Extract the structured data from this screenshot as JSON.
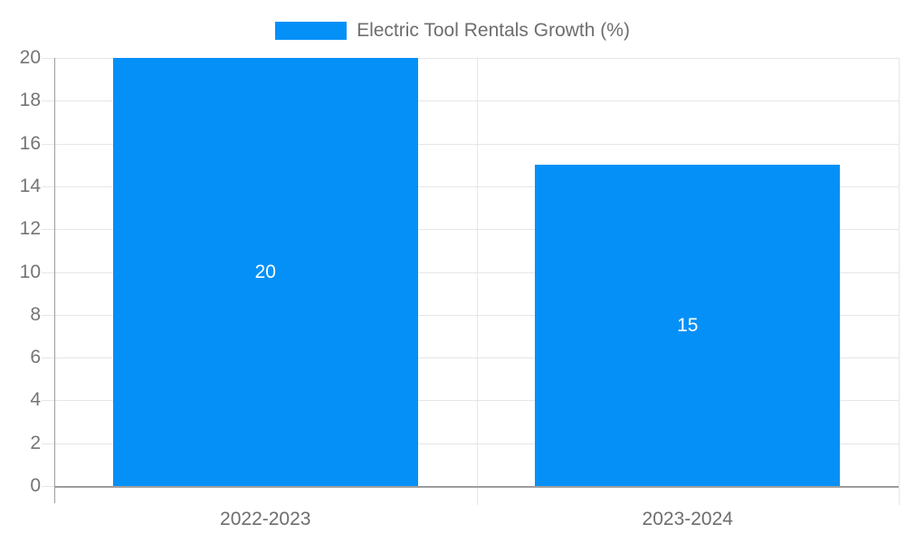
{
  "legend": {
    "label": "Electric Tool Rentals Growth (%)"
  },
  "chart_data": {
    "type": "bar",
    "title": "Electric Tool Rentals Growth (%)",
    "categories": [
      "2022-2023",
      "2023-2024"
    ],
    "series": [
      {
        "name": "Electric Tool Rentals Growth (%)",
        "values": [
          20,
          15
        ]
      }
    ],
    "value_labels": [
      "20",
      "15"
    ],
    "ytick_labels": [
      "0",
      "2",
      "4",
      "6",
      "8",
      "10",
      "12",
      "14",
      "16",
      "18",
      "20"
    ],
    "xlabel": "",
    "ylabel": "",
    "ylim": [
      0,
      20
    ],
    "ytick_step": 2,
    "grid": true,
    "legend_position": "top",
    "colors": {
      "bar": "#0590f8",
      "grid": "#e6e6e6",
      "axis": "#9e9e9e",
      "tick_label": "#757575",
      "value_label": "#ffffff"
    }
  }
}
